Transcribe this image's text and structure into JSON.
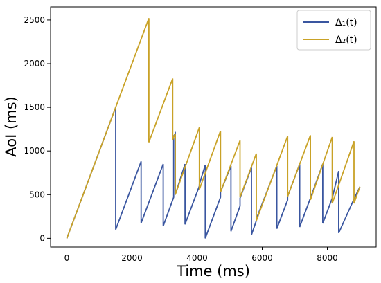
{
  "chart_data": {
    "type": "line",
    "xlabel": "Time (ms)",
    "ylabel": "AoI (ms)",
    "xlim": [
      -500,
      9500
    ],
    "ylim": [
      -100,
      2650
    ],
    "xticks": [
      0,
      2000,
      4000,
      6000,
      8000
    ],
    "xtick_labels": [
      "0",
      "2000",
      "4000",
      "6000",
      "8000"
    ],
    "yticks": [
      0,
      500,
      1000,
      1500,
      2000,
      2500
    ],
    "ytick_labels": [
      "0",
      "500",
      "1000",
      "1500",
      "2000",
      "2500"
    ],
    "grid": false,
    "legend_position": "top-right",
    "series": [
      {
        "name": "Δ₁(t)",
        "color": "#3a56a0",
        "points": [
          [
            0,
            0
          ],
          [
            1500,
            1500
          ],
          [
            1500,
            100
          ],
          [
            2280,
            880
          ],
          [
            2280,
            175
          ],
          [
            2960,
            850
          ],
          [
            2960,
            140
          ],
          [
            3280,
            470
          ],
          [
            3280,
            1170
          ],
          [
            3330,
            1200
          ],
          [
            3330,
            500
          ],
          [
            3630,
            850
          ],
          [
            3630,
            160
          ],
          [
            4070,
            600
          ],
          [
            4070,
            620
          ],
          [
            4250,
            840
          ],
          [
            4250,
            0
          ],
          [
            4720,
            470
          ],
          [
            4720,
            530
          ],
          [
            5040,
            830
          ],
          [
            5040,
            80
          ],
          [
            5320,
            370
          ],
          [
            5320,
            460
          ],
          [
            5670,
            810
          ],
          [
            5670,
            40
          ],
          [
            5820,
            200
          ],
          [
            5820,
            220
          ],
          [
            6450,
            830
          ],
          [
            6450,
            110
          ],
          [
            6780,
            440
          ],
          [
            6780,
            480
          ],
          [
            7150,
            850
          ],
          [
            7150,
            130
          ],
          [
            7480,
            460
          ],
          [
            7860,
            850
          ],
          [
            7860,
            170
          ],
          [
            8150,
            460
          ],
          [
            8350,
            770
          ],
          [
            8350,
            60
          ],
          [
            8820,
            450
          ],
          [
            9000,
            590
          ]
        ]
      },
      {
        "name": "Δ₂(t)",
        "color": "#c9a227",
        "points": [
          [
            0,
            0
          ],
          [
            2520,
            2520
          ],
          [
            2520,
            1100
          ],
          [
            3250,
            1830
          ],
          [
            3250,
            1130
          ],
          [
            3330,
            1200
          ],
          [
            3330,
            500
          ],
          [
            4070,
            1270
          ],
          [
            4070,
            560
          ],
          [
            4720,
            1230
          ],
          [
            4720,
            530
          ],
          [
            5320,
            1120
          ],
          [
            5320,
            470
          ],
          [
            5820,
            970
          ],
          [
            5820,
            200
          ],
          [
            6780,
            1170
          ],
          [
            6780,
            480
          ],
          [
            7480,
            1180
          ],
          [
            7480,
            440
          ],
          [
            8150,
            1160
          ],
          [
            8150,
            400
          ],
          [
            8820,
            1110
          ],
          [
            8820,
            400
          ],
          [
            9000,
            590
          ]
        ]
      }
    ]
  }
}
